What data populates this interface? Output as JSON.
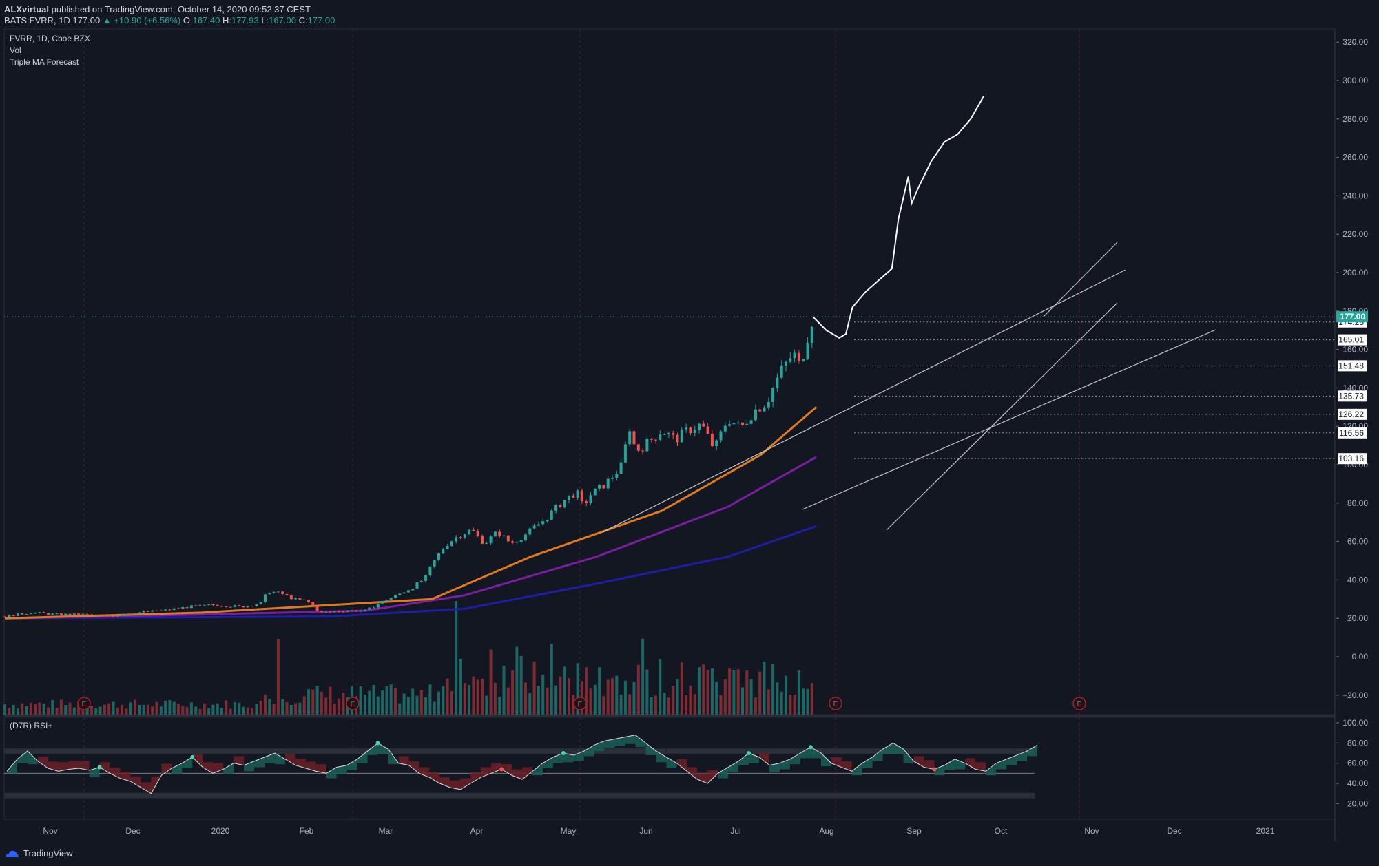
{
  "header": {
    "publisher": "ALXvirtual",
    "published_text": "published on TradingView.com, October 14, 2020 09:52:37 CEST",
    "symbol": "BATS:FVRR, 1D",
    "last": "177.00",
    "change": "▲ +10.90 (+6.56%)",
    "o_label": "O:",
    "o": "167.40",
    "h_label": "H:",
    "h": "177.93",
    "l_label": "L:",
    "l": "167.00",
    "c_label": "C:",
    "c": "177.00"
  },
  "legend": {
    "series_title": "FVRR, 1D, Cboe BZX",
    "vol": "Vol",
    "indicator": "Triple MA Forecast"
  },
  "rsi_title": "(D7R) RSI+",
  "footer": {
    "brand": "TradingView"
  },
  "colors": {
    "background": "#131722",
    "up": "#26a69a",
    "down": "#ef5350",
    "ma_fast": "#e17a1e",
    "ma_mid": "#7b1fa2",
    "ma_slow": "#1e1ea8",
    "last_price_bg": "#26a69a",
    "earnings": "#b71c1c",
    "forecast": "#ffffff"
  },
  "chart_data": [
    {
      "type": "candlestick",
      "title": "FVRR, 1D, Cboe BZX",
      "x_ticks": [
        "Nov",
        "Dec",
        "2020",
        "Feb",
        "Mar",
        "Apr",
        "May",
        "Jun",
        "Jul",
        "Aug",
        "Sep",
        "Oct",
        "Nov",
        "Dec",
        "2021"
      ],
      "y_ticks": [
        "320.00",
        "300.00",
        "280.00",
        "260.00",
        "240.00",
        "220.00",
        "200.00",
        "180.00",
        "160.00",
        "140.00",
        "120.00",
        "100.00",
        "80.00",
        "60.00",
        "40.00",
        "20.00",
        "0.00",
        "−20.00"
      ],
      "ylim": [
        -25,
        322
      ],
      "last_price": "177.00",
      "price_labels": [
        "174.28",
        "165.01",
        "151.48",
        "135.73",
        "126.22",
        "116.56",
        "103.16"
      ],
      "earnings_markers": [
        "E",
        "E",
        "E",
        "E",
        "E",
        "E"
      ],
      "price_path": [
        [
          0,
          21
        ],
        [
          8,
          23
        ],
        [
          16,
          22
        ],
        [
          24,
          22
        ],
        [
          32,
          21
        ],
        [
          40,
          23
        ],
        [
          48,
          24
        ],
        [
          56,
          26
        ],
        [
          64,
          27
        ],
        [
          72,
          26
        ],
        [
          78,
          28
        ],
        [
          80,
          34
        ],
        [
          84,
          33
        ],
        [
          88,
          30
        ],
        [
          92,
          29
        ],
        [
          96,
          23
        ],
        [
          104,
          24
        ],
        [
          110,
          24
        ],
        [
          114,
          28
        ],
        [
          118,
          31
        ],
        [
          124,
          36
        ],
        [
          128,
          41
        ],
        [
          130,
          48
        ],
        [
          134,
          58
        ],
        [
          138,
          63
        ],
        [
          142,
          66
        ],
        [
          146,
          59
        ],
        [
          150,
          65
        ],
        [
          154,
          59
        ],
        [
          158,
          63
        ],
        [
          164,
          71
        ],
        [
          170,
          81
        ],
        [
          174,
          86
        ],
        [
          176,
          78
        ],
        [
          178,
          84
        ],
        [
          182,
          89
        ],
        [
          184,
          92
        ],
        [
          188,
          100
        ],
        [
          190,
          121
        ],
        [
          192,
          107
        ],
        [
          196,
          112
        ],
        [
          200,
          118
        ],
        [
          204,
          113
        ],
        [
          208,
          118
        ],
        [
          212,
          121
        ],
        [
          216,
          108
        ],
        [
          220,
          124
        ],
        [
          224,
          119
        ],
        [
          228,
          128
        ],
        [
          232,
          133
        ],
        [
          236,
          148
        ],
        [
          240,
          158
        ],
        [
          242,
          151
        ],
        [
          244,
          165
        ],
        [
          246,
          177
        ]
      ],
      "ma_fast": [
        [
          0,
          20
        ],
        [
          60,
          23
        ],
        [
          100,
          27
        ],
        [
          130,
          30
        ],
        [
          160,
          52
        ],
        [
          200,
          76
        ],
        [
          230,
          105
        ],
        [
          247,
          130
        ]
      ],
      "ma_mid": [
        [
          0,
          20
        ],
        [
          60,
          22
        ],
        [
          110,
          24
        ],
        [
          140,
          32
        ],
        [
          180,
          52
        ],
        [
          220,
          78
        ],
        [
          247,
          104
        ]
      ],
      "ma_slow": [
        [
          0,
          20
        ],
        [
          100,
          21
        ],
        [
          140,
          25
        ],
        [
          180,
          38
        ],
        [
          220,
          52
        ],
        [
          247,
          68
        ]
      ],
      "forecast_path": [
        [
          246,
          177
        ],
        [
          250,
          170
        ],
        [
          254,
          166
        ],
        [
          256,
          168
        ],
        [
          258,
          182
        ],
        [
          262,
          190
        ],
        [
          266,
          196
        ],
        [
          270,
          202
        ],
        [
          272,
          228
        ],
        [
          275,
          250
        ],
        [
          276,
          236
        ],
        [
          278,
          244
        ],
        [
          282,
          258
        ],
        [
          286,
          268
        ],
        [
          290,
          272
        ],
        [
          294,
          280
        ],
        [
          298,
          292
        ]
      ]
    },
    {
      "type": "area",
      "title": "(D7R) RSI+",
      "y_ticks": [
        "100.00",
        "80.00",
        "60.00",
        "40.00",
        "20.00"
      ],
      "ylim": [
        10,
        100
      ],
      "levels": [
        30,
        50,
        70
      ],
      "values": [
        52,
        64,
        72,
        62,
        55,
        52,
        54,
        55,
        53,
        56,
        50,
        45,
        42,
        36,
        30,
        48,
        55,
        60,
        66,
        56,
        50,
        54,
        60,
        58,
        62,
        66,
        70,
        64,
        58,
        55,
        52,
        50,
        56,
        58,
        64,
        72,
        80,
        74,
        60,
        58,
        50,
        46,
        40,
        36,
        34,
        40,
        46,
        50,
        54,
        48,
        44,
        52,
        60,
        66,
        70,
        68,
        72,
        78,
        82,
        84,
        86,
        88,
        80,
        72,
        66,
        60,
        52,
        44,
        40,
        50,
        56,
        62,
        70,
        66,
        58,
        60,
        64,
        70,
        76,
        70,
        60,
        56,
        52,
        60,
        66,
        74,
        80,
        74,
        62,
        56,
        54,
        58,
        64,
        60,
        54,
        52,
        60,
        64,
        68,
        72,
        78
      ]
    }
  ]
}
